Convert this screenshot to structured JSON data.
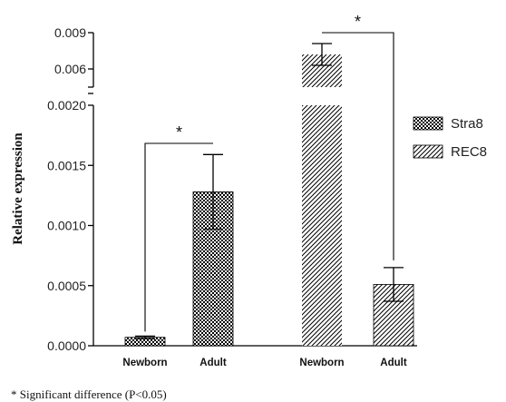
{
  "chart_data": {
    "type": "bar",
    "ylabel": "Relative expression",
    "footnote": "* Significant difference  (P<0.05)",
    "y_axis": {
      "type": "broken",
      "lower_range": [
        0,
        0.002
      ],
      "lower_ticks": [
        "0.0000",
        "0.0005",
        "0.0010",
        "0.0015",
        "0.0020"
      ],
      "upper_range": [
        0.0045,
        0.009
      ],
      "upper_ticks": [
        "0.006",
        "0.009"
      ]
    },
    "legend": {
      "placement": "right",
      "items": [
        {
          "label": "Stra8",
          "pattern": "crosshatch"
        },
        {
          "label": "REC8",
          "pattern": "diagonal"
        }
      ]
    },
    "series": [
      {
        "name": "Stra8",
        "pattern": "crosshatch",
        "categories": [
          "Newborn",
          "Adult"
        ],
        "values": [
          7e-05,
          0.00128
        ],
        "errors": [
          1e-05,
          0.00031
        ]
      },
      {
        "name": "REC8",
        "pattern": "diagonal",
        "categories": [
          "Newborn",
          "Adult"
        ],
        "values": [
          0.0072,
          0.00051
        ],
        "errors": [
          0.0009,
          0.00014
        ]
      }
    ],
    "significance": [
      {
        "series": "Stra8",
        "label": "*"
      },
      {
        "series": "REC8",
        "label": "*"
      }
    ],
    "colors": {
      "axis": "#000000",
      "fill": "#ffffff",
      "hatch": "#000000"
    }
  }
}
